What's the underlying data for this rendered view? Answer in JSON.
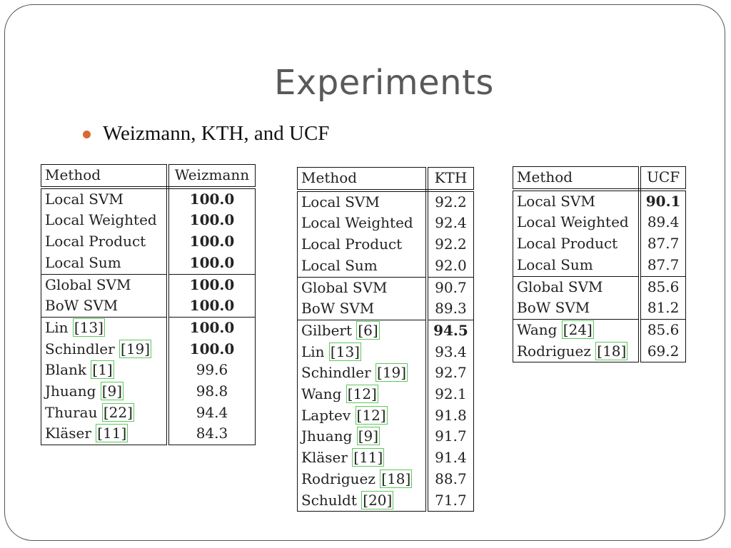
{
  "slide": {
    "title": "Experiments",
    "bullet": "Weizmann, KTH, and UCF"
  },
  "tables": [
    {
      "header": [
        "Method",
        "Weizmann"
      ],
      "rows": [
        {
          "name": "Local SVM",
          "cite": "",
          "value": "100.0",
          "bold": true,
          "group_end": false
        },
        {
          "name": "Local Weighted",
          "cite": "",
          "value": "100.0",
          "bold": true,
          "group_end": false
        },
        {
          "name": "Local Product",
          "cite": "",
          "value": "100.0",
          "bold": true,
          "group_end": false
        },
        {
          "name": "Local Sum",
          "cite": "",
          "value": "100.0",
          "bold": true,
          "group_end": true
        },
        {
          "name": "Global SVM",
          "cite": "",
          "value": "100.0",
          "bold": true,
          "group_end": false
        },
        {
          "name": "BoW SVM",
          "cite": "",
          "value": "100.0",
          "bold": true,
          "group_end": true
        },
        {
          "name": "Lin",
          "cite": "[13]",
          "value": "100.0",
          "bold": true,
          "group_end": false
        },
        {
          "name": "Schindler",
          "cite": "[19]",
          "value": "100.0",
          "bold": true,
          "group_end": false
        },
        {
          "name": "Blank",
          "cite": "[1]",
          "value": "99.6",
          "bold": false,
          "group_end": false
        },
        {
          "name": "Jhuang",
          "cite": "[9]",
          "value": "98.8",
          "bold": false,
          "group_end": false
        },
        {
          "name": "Thurau",
          "cite": "[22]",
          "value": "94.4",
          "bold": false,
          "group_end": false
        },
        {
          "name": "Kläser",
          "cite": "[11]",
          "value": "84.3",
          "bold": false,
          "group_end": false
        }
      ]
    },
    {
      "header": [
        "Method",
        "KTH"
      ],
      "rows": [
        {
          "name": "Local SVM",
          "cite": "",
          "value": "92.2",
          "bold": false,
          "group_end": false
        },
        {
          "name": "Local Weighted",
          "cite": "",
          "value": "92.4",
          "bold": false,
          "group_end": false
        },
        {
          "name": "Local Product",
          "cite": "",
          "value": "92.2",
          "bold": false,
          "group_end": false
        },
        {
          "name": "Local Sum",
          "cite": "",
          "value": "92.0",
          "bold": false,
          "group_end": true
        },
        {
          "name": "Global SVM",
          "cite": "",
          "value": "90.7",
          "bold": false,
          "group_end": false
        },
        {
          "name": "BoW SVM",
          "cite": "",
          "value": "89.3",
          "bold": false,
          "group_end": true
        },
        {
          "name": "Gilbert",
          "cite": "[6]",
          "value": "94.5",
          "bold": true,
          "group_end": false
        },
        {
          "name": "Lin",
          "cite": "[13]",
          "value": "93.4",
          "bold": false,
          "group_end": false
        },
        {
          "name": "Schindler",
          "cite": "[19]",
          "value": "92.7",
          "bold": false,
          "group_end": false
        },
        {
          "name": "Wang",
          "cite": "[12]",
          "value": "92.1",
          "bold": false,
          "group_end": false
        },
        {
          "name": "Laptev",
          "cite": "[12]",
          "value": "91.8",
          "bold": false,
          "group_end": false
        },
        {
          "name": "Jhuang",
          "cite": "[9]",
          "value": "91.7",
          "bold": false,
          "group_end": false
        },
        {
          "name": "Kläser",
          "cite": "[11]",
          "value": "91.4",
          "bold": false,
          "group_end": false
        },
        {
          "name": "Rodriguez",
          "cite": "[18]",
          "value": "88.7",
          "bold": false,
          "group_end": false
        },
        {
          "name": "Schuldt",
          "cite": "[20]",
          "value": "71.7",
          "bold": false,
          "group_end": false
        }
      ]
    },
    {
      "header": [
        "Method",
        "UCF"
      ],
      "rows": [
        {
          "name": "Local SVM",
          "cite": "",
          "value": "90.1",
          "bold": true,
          "group_end": false
        },
        {
          "name": "Local Weighted",
          "cite": "",
          "value": "89.4",
          "bold": false,
          "group_end": false
        },
        {
          "name": "Local Product",
          "cite": "",
          "value": "87.7",
          "bold": false,
          "group_end": false
        },
        {
          "name": "Local Sum",
          "cite": "",
          "value": "87.7",
          "bold": false,
          "group_end": true
        },
        {
          "name": "Global SVM",
          "cite": "",
          "value": "85.6",
          "bold": false,
          "group_end": false
        },
        {
          "name": "BoW SVM",
          "cite": "",
          "value": "81.2",
          "bold": false,
          "group_end": true
        },
        {
          "name": "Wang",
          "cite": "[24]",
          "value": "85.6",
          "bold": false,
          "group_end": false
        },
        {
          "name": "Rodriguez",
          "cite": "[18]",
          "value": "69.2",
          "bold": false,
          "group_end": false
        }
      ]
    }
  ]
}
